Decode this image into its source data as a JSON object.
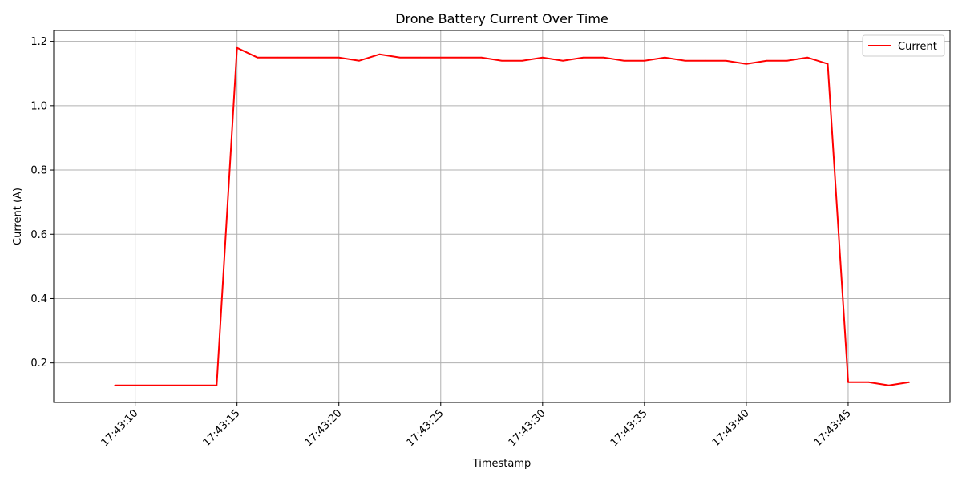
{
  "chart_data": {
    "type": "line",
    "title": "Drone Battery Current Over Time",
    "xlabel": "Timestamp",
    "ylabel": "Current (A)",
    "x_ticks": [
      "17:43:10",
      "17:43:15",
      "17:43:20",
      "17:43:25",
      "17:43:30",
      "17:43:35",
      "17:43:40",
      "17:43:45"
    ],
    "y_ticks": [
      "0.2",
      "0.4",
      "0.6",
      "0.8",
      "1.0",
      "1.2"
    ],
    "xlim": [
      "17:43:06",
      "17:43:50"
    ],
    "ylim": [
      0.077,
      1.234
    ],
    "grid": true,
    "legend": {
      "location": "top-right"
    },
    "series": [
      {
        "name": "Current",
        "color": "#ff0000",
        "x": [
          "17:43:09",
          "17:43:10",
          "17:43:11",
          "17:43:12",
          "17:43:13",
          "17:43:14",
          "17:43:15",
          "17:43:16",
          "17:43:17",
          "17:43:18",
          "17:43:19",
          "17:43:20",
          "17:43:21",
          "17:43:22",
          "17:43:23",
          "17:43:24",
          "17:43:25",
          "17:43:26",
          "17:43:27",
          "17:43:28",
          "17:43:29",
          "17:43:30",
          "17:43:31",
          "17:43:32",
          "17:43:33",
          "17:43:34",
          "17:43:35",
          "17:43:36",
          "17:43:37",
          "17:43:38",
          "17:43:39",
          "17:43:40",
          "17:43:41",
          "17:43:42",
          "17:43:43",
          "17:43:44",
          "17:43:45",
          "17:43:46",
          "17:43:47",
          "17:43:48"
        ],
        "values": [
          0.13,
          0.13,
          0.13,
          0.13,
          0.13,
          0.13,
          1.18,
          1.15,
          1.15,
          1.15,
          1.15,
          1.15,
          1.14,
          1.16,
          1.15,
          1.15,
          1.15,
          1.15,
          1.15,
          1.14,
          1.14,
          1.15,
          1.14,
          1.15,
          1.15,
          1.14,
          1.14,
          1.15,
          1.14,
          1.14,
          1.14,
          1.13,
          1.14,
          1.14,
          1.15,
          1.13,
          0.14,
          0.14,
          0.13,
          0.14
        ]
      }
    ]
  }
}
